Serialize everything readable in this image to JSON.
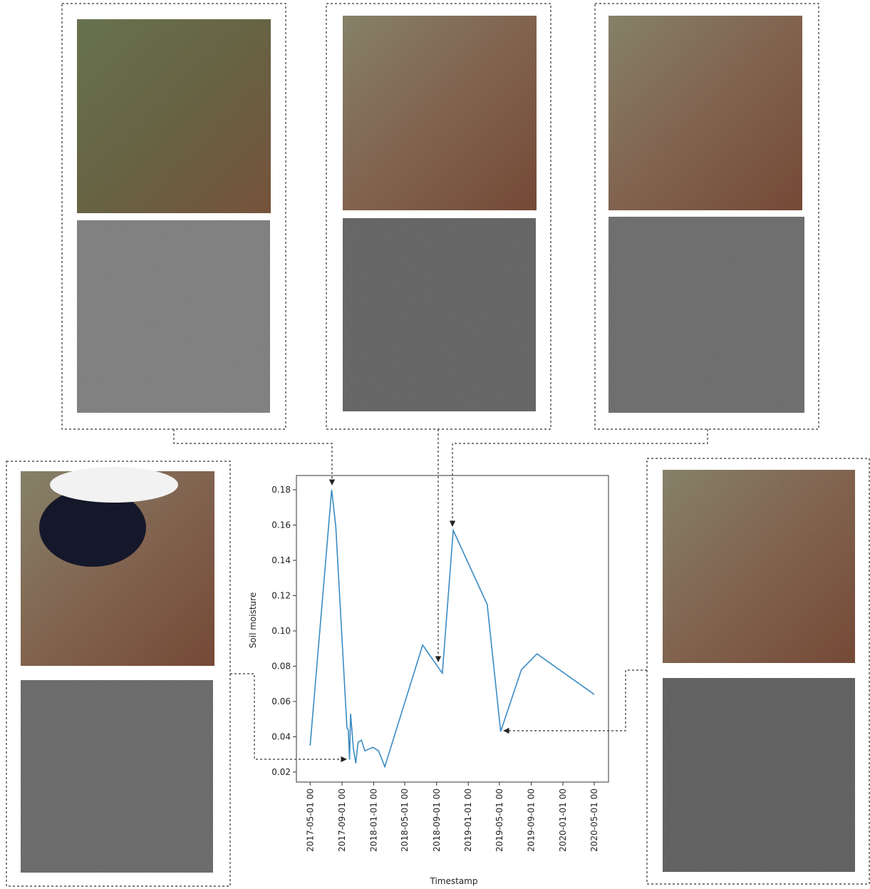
{
  "chart_data": {
    "type": "line",
    "x_label": "Timestamp",
    "y_label": "Soil moisture",
    "x": [
      "2017-05-01",
      "2017-07-23",
      "2017-08-08",
      "2017-09-20",
      "2017-09-25",
      "2017-09-30",
      "2017-10-04",
      "2017-10-15",
      "2017-10-24",
      "2017-11-02",
      "2017-11-15",
      "2017-11-28",
      "2017-12-29",
      "2018-01-20",
      "2018-02-13",
      "2018-07-09",
      "2018-09-23",
      "2018-11-04",
      "2019-03-15",
      "2019-05-06",
      "2019-07-25",
      "2019-09-23",
      "2020-05-01"
    ],
    "series": [
      {
        "name": "Soil moisture",
        "color": "#3b8bc2",
        "values": [
          0.035,
          0.18,
          0.159,
          0.045,
          0.044,
          0.027,
          0.053,
          0.033,
          0.025,
          0.037,
          0.038,
          0.032,
          0.034,
          0.032,
          0.023,
          0.092,
          0.076,
          0.157,
          0.115,
          0.043,
          0.078,
          0.087,
          0.064
        ]
      }
    ],
    "xlim": [
      "2017-03-09",
      "2020-06-25"
    ],
    "xticks": [
      {
        "value": "2017-05-01",
        "label": "2017-05-01 00"
      },
      {
        "value": "2017-09-01",
        "label": "2017-09-01 00"
      },
      {
        "value": "2018-01-01",
        "label": "2018-01-01 00"
      },
      {
        "value": "2018-05-01",
        "label": "2018-05-01 00"
      },
      {
        "value": "2018-09-01",
        "label": "2018-09-01 00"
      },
      {
        "value": "2019-01-01",
        "label": "2019-01-01 00"
      },
      {
        "value": "2019-05-01",
        "label": "2019-05-01 00"
      },
      {
        "value": "2019-09-01",
        "label": "2019-09-01 00"
      },
      {
        "value": "2020-01-01",
        "label": "2020-01-01 00"
      },
      {
        "value": "2020-05-01",
        "label": "2020-05-01 00"
      }
    ],
    "ylim": [
      0.0143,
      0.1881
    ],
    "yticks": [
      0.02,
      0.04,
      0.06,
      0.08,
      {
        "value": 0.1,
        "label": "0.10"
      },
      0.12,
      0.14,
      0.16,
      0.18
    ],
    "grid": false
  }
}
